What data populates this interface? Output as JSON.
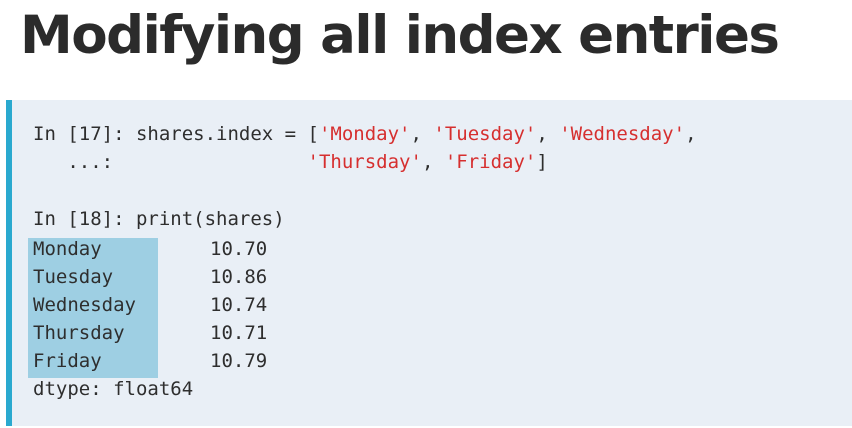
{
  "slide": {
    "title": "Modifying all index entries"
  },
  "code": {
    "in17_prompt": "In [17]: ",
    "in17_stmt": "shares.index = [",
    "in17_s1": "'Monday'",
    "in17_s2": "'Tuesday'",
    "in17_s3": "'Wednesday'",
    "sep": ", ",
    "cont_prompt": "   ...: ",
    "cont_s4": "'Thursday'",
    "cont_s5": "'Friday'",
    "close": "]",
    "trail_comma": ",",
    "in18_line": "In [18]: print(shares)",
    "dtype_line": "dtype: float64"
  },
  "series_output": {
    "rows": [
      {
        "label": "Monday",
        "value": "10.70"
      },
      {
        "label": "Tuesday",
        "value": "10.86"
      },
      {
        "label": "Wednesday",
        "value": "10.74"
      },
      {
        "label": "Thursday",
        "value": "10.71"
      },
      {
        "label": "Friday",
        "value": "10.79"
      }
    ]
  },
  "colors": {
    "accent": "#2aa9cf",
    "string": "#d62f2f",
    "highlight": "#9ecfe3",
    "panel": "#e9eff6"
  }
}
